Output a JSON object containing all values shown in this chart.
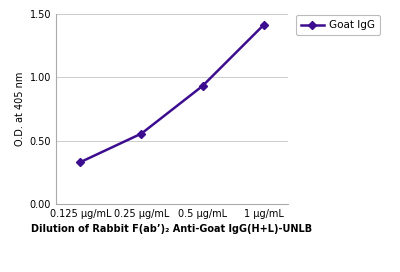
{
  "x_values": [
    1,
    2,
    3,
    4
  ],
  "x_labels": [
    "0.125 μg/mL",
    "0.25 μg/mL",
    "0.5 μg/mL",
    "1 μg/mL"
  ],
  "y_values": [
    0.33,
    0.555,
    0.93,
    1.41
  ],
  "line_color": "#3d0d8f",
  "marker_style": "D",
  "marker_size": 4,
  "line_width": 1.8,
  "ylabel": "O.D. at 405 nm",
  "xlabel": "Dilution of Rabbit F(ab’)₂ Anti-Goat IgG(H+L)-UNLB",
  "ylim": [
    0.0,
    1.5
  ],
  "yticks": [
    0.0,
    0.5,
    1.0,
    1.5
  ],
  "legend_label": "Goat IgG",
  "background_color": "#ffffff",
  "plot_bg_color": "#ffffff",
  "grid_color": "#cccccc",
  "axis_label_fontsize": 7.0,
  "tick_fontsize": 7.0,
  "legend_fontsize": 7.5
}
